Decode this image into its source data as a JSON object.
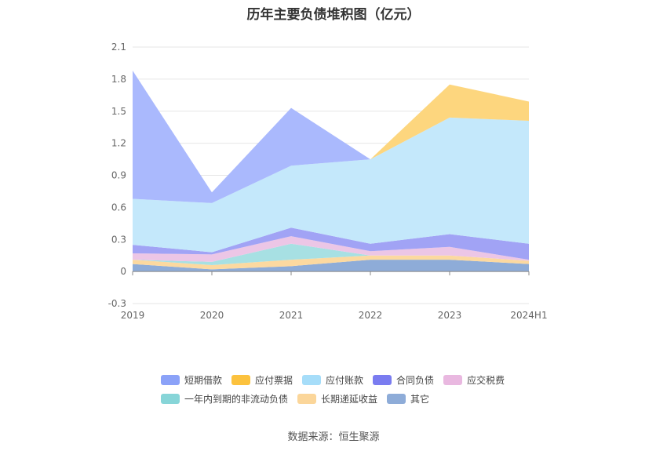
{
  "chart_data": {
    "type": "area",
    "title": "历年主要负债堆积图（亿元）",
    "categories": [
      "2019",
      "2020",
      "2021",
      "2022",
      "2023",
      "2024H1"
    ],
    "ylim": [
      -0.3,
      2.1
    ],
    "yticks": [
      "2.1",
      "1.8",
      "1.5",
      "1.2",
      "0.9",
      "0.6",
      "0.3",
      "0",
      "-0.3"
    ],
    "stacked": true,
    "grid": true,
    "legend_position": "bottom",
    "series": [
      {
        "name": "其它",
        "color": "#8eacd8",
        "values": [
          0.07,
          0.02,
          0.05,
          0.11,
          0.11,
          0.07
        ]
      },
      {
        "name": "长期递延收益",
        "color": "#fcd9a0",
        "values": [
          0.04,
          0.04,
          0.06,
          0.04,
          0.04,
          0.03
        ]
      },
      {
        "name": "一年内到期的非流动负债",
        "color": "#a7e0e3",
        "values": [
          0.0,
          0.03,
          0.15,
          0.0,
          0.0,
          0.0
        ]
      },
      {
        "name": "应交税费",
        "color": "#ecc6e6",
        "values": [
          0.06,
          0.07,
          0.07,
          0.04,
          0.08,
          0.01
        ]
      },
      {
        "name": "合同负债",
        "color": "#a1a3f5",
        "values": [
          0.08,
          0.02,
          0.08,
          0.07,
          0.12,
          0.15
        ]
      },
      {
        "name": "应付账款",
        "color": "#c4e8fb",
        "values": [
          0.43,
          0.46,
          0.58,
          0.79,
          1.09,
          1.15
        ]
      },
      {
        "name": "应付票据",
        "color": "#fdd67e",
        "values": [
          0.0,
          0.0,
          0.0,
          0.0,
          0.31,
          0.18
        ]
      },
      {
        "name": "短期借款",
        "color": "#aab9fd",
        "values": [
          1.2,
          0.1,
          0.54,
          0.0,
          0.0,
          0.0
        ]
      }
    ]
  },
  "legend": {
    "row1": [
      {
        "label": "短期借款",
        "color": "#8ba2f8"
      },
      {
        "label": "应付票据",
        "color": "#fcc23e"
      },
      {
        "label": "应付账款",
        "color": "#a6ddf9"
      },
      {
        "label": "合同负债",
        "color": "#7a7cf0"
      },
      {
        "label": "应交税费",
        "color": "#e9b8e0"
      }
    ],
    "row2": [
      {
        "label": "一年内到期的非流动负债",
        "color": "#87d5d8"
      },
      {
        "label": "长期递延收益",
        "color": "#fbd69a"
      },
      {
        "label": "其它",
        "color": "#8eacd8"
      }
    ]
  },
  "source": "数据来源：恒生聚源"
}
